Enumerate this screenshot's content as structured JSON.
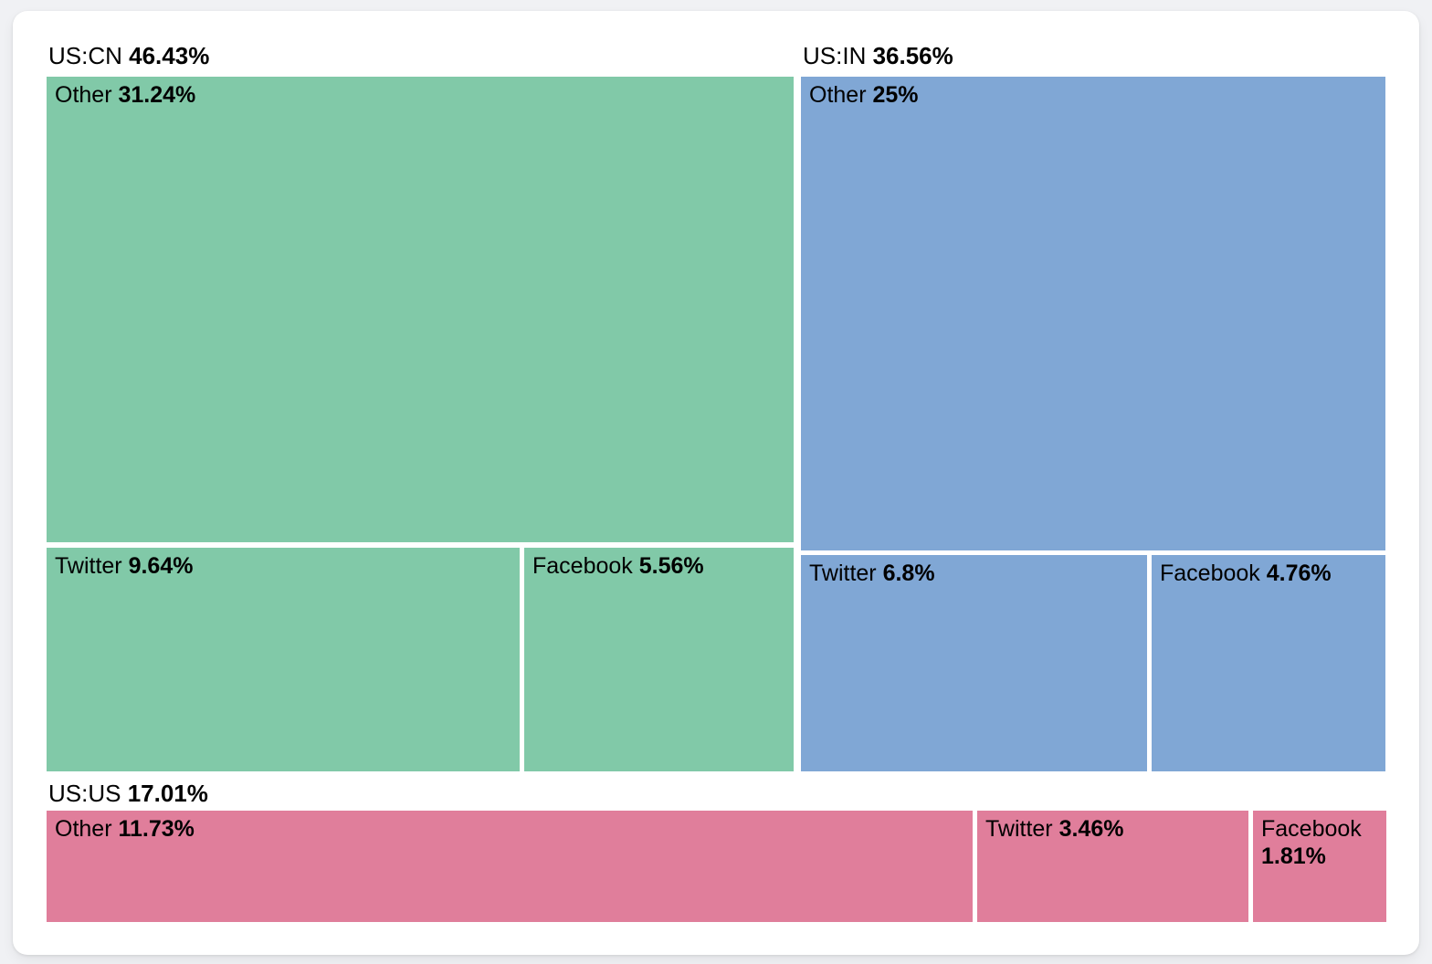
{
  "page": {
    "background_color": "#f0f1f4",
    "card_color": "#ffffff",
    "text_color": "#000000"
  },
  "chart_data": {
    "type": "treemap",
    "title": "",
    "value_unit": "percent",
    "legend_position": "none",
    "groups": [
      {
        "name": "US:CN",
        "share": "46.43%",
        "color": "#81c9a8",
        "cells": [
          {
            "label": "Other",
            "share": "31.24%"
          },
          {
            "label": "Twitter",
            "share": "9.64%"
          },
          {
            "label": "Facebook",
            "share": "5.56%"
          }
        ]
      },
      {
        "name": "US:IN",
        "share": "36.56%",
        "color": "#80a7d5",
        "cells": [
          {
            "label": "Other",
            "share": "25%"
          },
          {
            "label": "Twitter",
            "share": "6.8%"
          },
          {
            "label": "Facebook",
            "share": "4.76%"
          }
        ]
      },
      {
        "name": "US:US",
        "share": "17.01%",
        "color": "#e07e9b",
        "cells": [
          {
            "label": "Other",
            "share": "11.73%"
          },
          {
            "label": "Twitter",
            "share": "3.46%"
          },
          {
            "label": "Facebook",
            "share": "1.81%"
          }
        ]
      }
    ]
  }
}
